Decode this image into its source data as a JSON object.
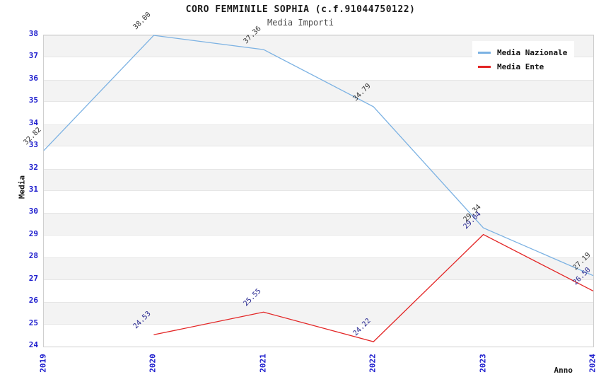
{
  "title": "CORO FEMMINILE SOPHIA (c.f.91044750122)",
  "subtitle": "Media Importi",
  "legend": {
    "items": [
      {
        "label": "Media Nazionale",
        "color": "#7cb2e3"
      },
      {
        "label": "Media Ente",
        "color": "#e32525"
      }
    ]
  },
  "axes": {
    "x_label": "Anno",
    "y_label": "Media",
    "x_tick_labels": [
      "2019",
      "2020",
      "2021",
      "2022",
      "2023",
      "2024"
    ],
    "y_tick_min": 24,
    "y_tick_max": 38,
    "y_tick_step": 1,
    "tick_color": "#1c1ccd"
  },
  "chart_data": {
    "type": "line",
    "title": "CORO FEMMINILE SOPHIA (c.f.91044750122)",
    "subtitle": "Media Importi",
    "x": [
      2019,
      2020,
      2021,
      2022,
      2023,
      2024
    ],
    "xlabel": "Anno",
    "ylabel": "Media",
    "ylim": [
      24,
      38
    ],
    "grid": "horizontal-bands",
    "legend_position": "top-right",
    "series": [
      {
        "name": "Media Nazionale",
        "color": "#7cb2e3",
        "label_color": "#333333",
        "values": [
          32.82,
          38.0,
          37.36,
          34.79,
          29.34,
          27.19
        ]
      },
      {
        "name": "Media Ente",
        "color": "#e32525",
        "label_color": "#23238e",
        "values": [
          null,
          24.53,
          25.55,
          24.22,
          29.04,
          26.5
        ]
      }
    ]
  }
}
